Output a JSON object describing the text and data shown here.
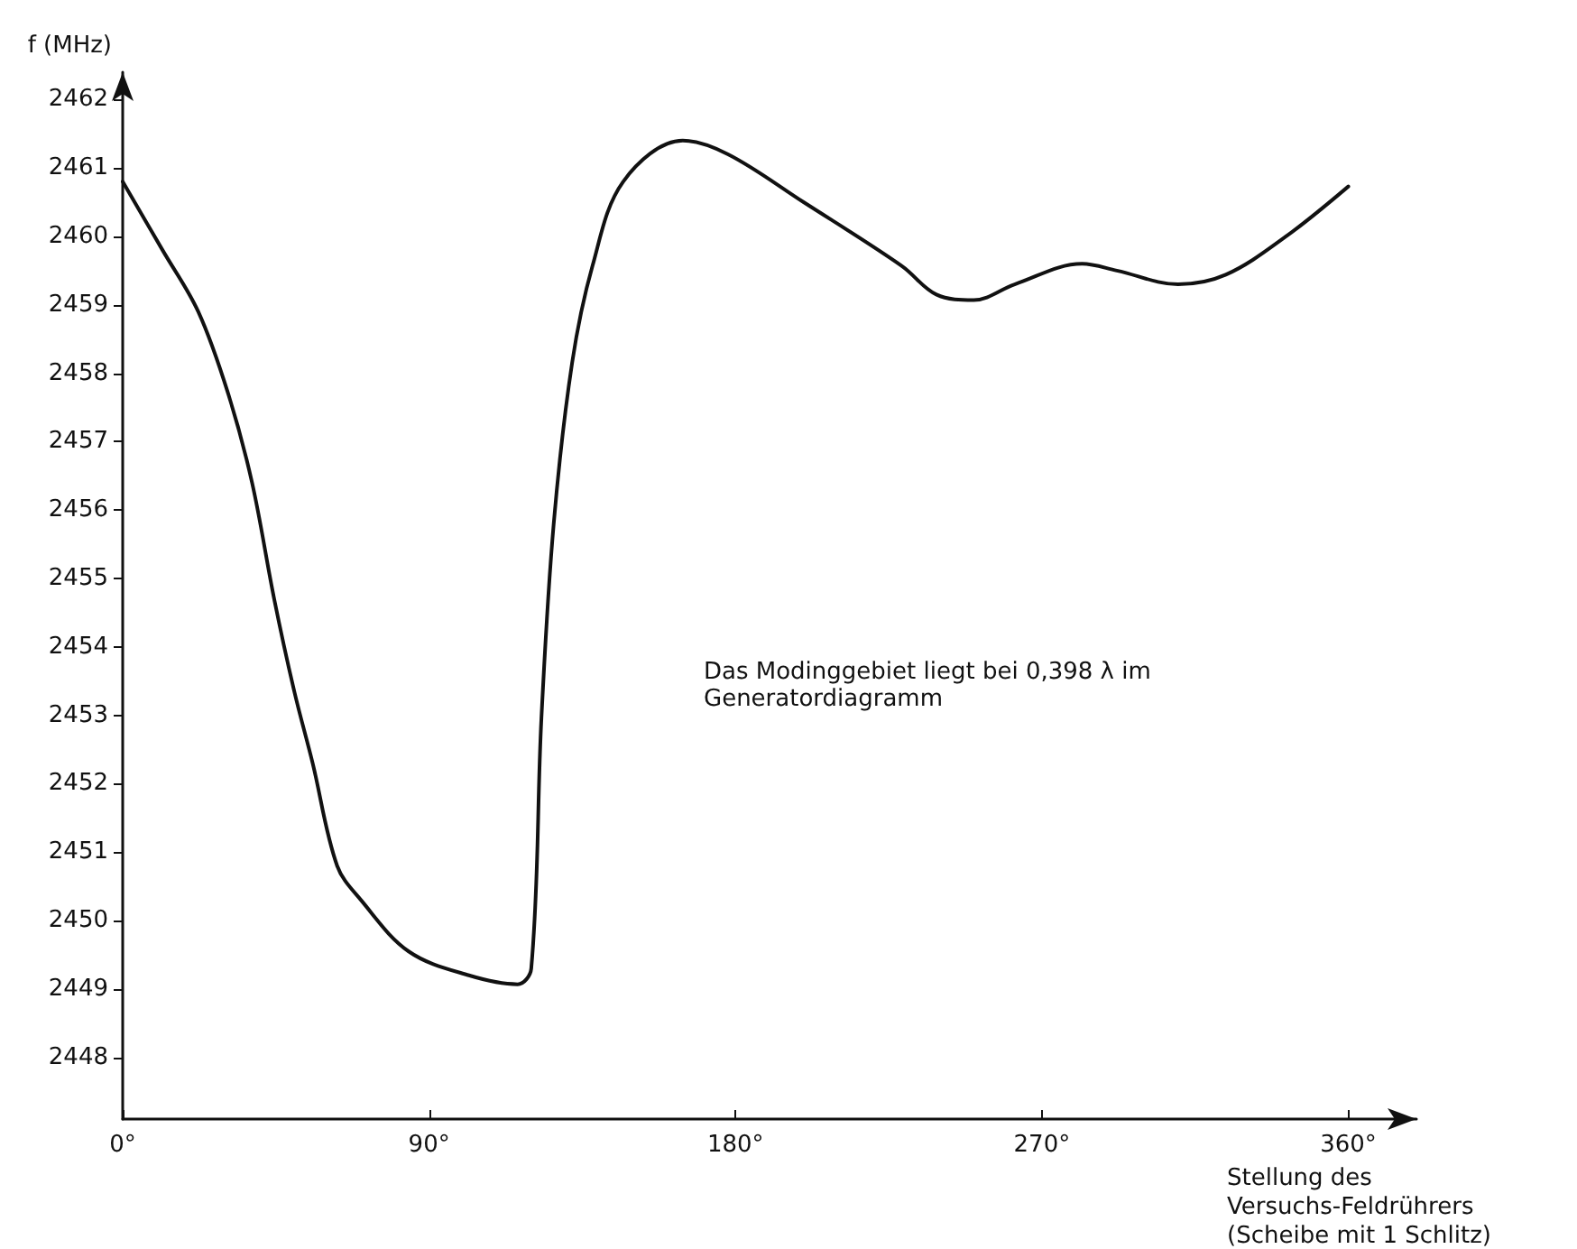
{
  "chart_data": {
    "type": "line",
    "ylabel": "f (MHz)",
    "xlabel": "Stellung des Versuchs-Feldrührers (Scheibe mit 1 Schlitz)",
    "annotations": [
      "Das Modinggebiet liegt bei 0,398 λ im Generatordiagramm"
    ],
    "x": [
      0,
      11.7,
      22.2,
      31,
      38,
      44.5,
      50.4,
      55.8,
      63,
      70,
      84,
      101.7,
      116,
      120,
      123,
      126.6,
      132,
      138,
      147,
      164.5,
      177.8,
      200,
      228.8,
      239,
      250,
      262,
      281.8,
      292,
      310,
      324,
      341.7,
      360
    ],
    "series": [
      {
        "color": "#111111",
        "values": [
          2460.8,
          2459.8,
          2458.9,
          2457.7,
          2456.4,
          2454.7,
          2453.35,
          2452.3,
          2450.8,
          2450.3,
          2449.55,
          2449.2,
          2449.07,
          2449.3,
          2452.97,
          2455.8,
          2458.15,
          2459.57,
          2460.8,
          2461.4,
          2461.2,
          2460.5,
          2459.57,
          2459.15,
          2459.07,
          2459.3,
          2459.6,
          2459.5,
          2459.3,
          2459.44,
          2460.0,
          2460.73
        ]
      }
    ],
    "xlim": [
      0,
      380
    ],
    "xticks": [
      {
        "value": 0,
        "label": "0°"
      },
      {
        "value": 90,
        "label": "90°"
      },
      {
        "value": 180,
        "label": "180°"
      },
      {
        "value": 270,
        "label": "270°"
      },
      {
        "value": 360,
        "label": "360°"
      }
    ],
    "ylim": [
      2447.1,
      2462.4
    ],
    "yticks": [
      2448,
      2449,
      2450,
      2451,
      2452,
      2453,
      2454,
      2455,
      2456,
      2457,
      2458,
      2459,
      2460,
      2461,
      2462
    ]
  }
}
